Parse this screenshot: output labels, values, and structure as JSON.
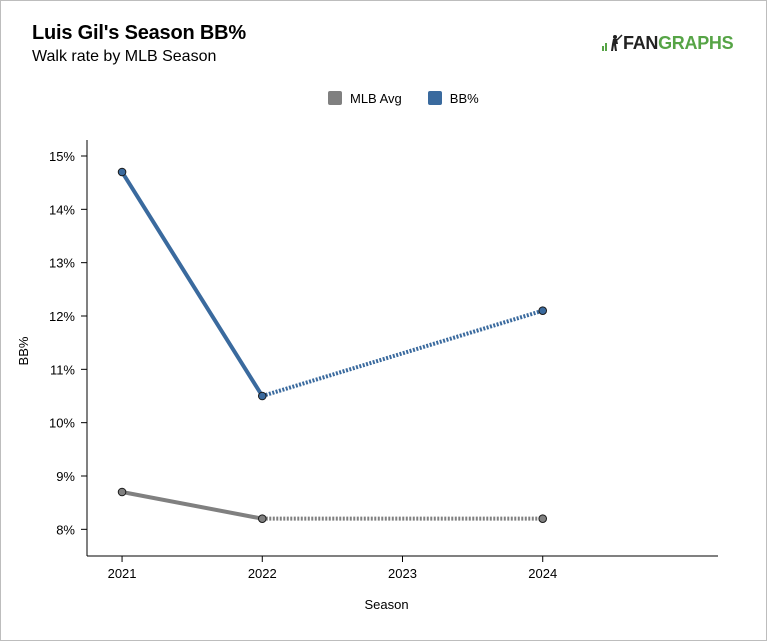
{
  "header": {
    "title": "Luis Gil's Season BB%",
    "subtitle": "Walk rate by MLB Season"
  },
  "logo": {
    "prefix": "FAN",
    "suffix": "GRAPHS"
  },
  "chart_data": {
    "type": "line",
    "title": "Luis Gil's Season BB%",
    "subtitle": "Walk rate by MLB Season",
    "xlabel": "Season",
    "ylabel": "BB%",
    "x": [
      2021,
      2022,
      2023,
      2024
    ],
    "x_tick_labels": [
      "2021",
      "2022",
      "2023",
      "2024"
    ],
    "y_tick_values": [
      8,
      9,
      10,
      11,
      12,
      13,
      14,
      15
    ],
    "y_tick_labels": [
      "8%",
      "9%",
      "10%",
      "11%",
      "12%",
      "13%",
      "14%",
      "15%"
    ],
    "ylim": [
      7.5,
      15.3
    ],
    "xlim": [
      2020.75,
      2025.25
    ],
    "legend_position": "top-center",
    "grid": false,
    "series": [
      {
        "name": "MLB Avg",
        "color": "#808080",
        "points": [
          {
            "x": 2021,
            "y": 8.7
          },
          {
            "x": 2022,
            "y": 8.2
          },
          {
            "x": 2024,
            "y": 8.2
          }
        ],
        "dashed_after_x": 2022
      },
      {
        "name": "BB%",
        "color": "#3a6a9e",
        "points": [
          {
            "x": 2021,
            "y": 14.7
          },
          {
            "x": 2022,
            "y": 10.5
          },
          {
            "x": 2024,
            "y": 12.1
          }
        ],
        "dashed_after_x": 2022
      }
    ]
  }
}
